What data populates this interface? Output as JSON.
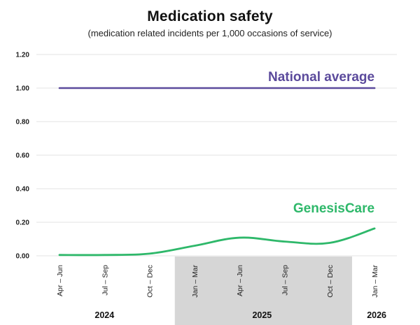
{
  "chart_data": {
    "type": "line",
    "title": "Medication safety",
    "subtitle": "(medication related incidents per 1,000 occasions of service)",
    "xlabel": "",
    "ylabel": "",
    "categories": [
      "Apr – Jun",
      "Jul – Sep",
      "Oct – Dec",
      "Jan – Mar",
      "Apr – Jun",
      "Jul – Sep",
      "Oct – Dec",
      "Jan – Mar"
    ],
    "ylim": [
      0,
      1.2
    ],
    "yticks": [
      "0.00",
      "0.20",
      "0.40",
      "0.60",
      "0.80",
      "1.00",
      "1.20"
    ],
    "grid": true,
    "legend": "inline labels",
    "year_groups": [
      {
        "label": "2024",
        "categories": [
          0,
          1,
          2
        ],
        "shaded": false
      },
      {
        "label": "2025",
        "categories": [
          3,
          4,
          5,
          6
        ],
        "shaded": true
      },
      {
        "label": "2026",
        "categories": [
          7
        ],
        "shaded": false
      }
    ],
    "series": [
      {
        "name": "National average",
        "color": "#5b4a9c",
        "values": [
          1.0,
          1.0,
          1.0,
          1.0,
          1.0,
          1.0,
          1.0,
          1.0
        ]
      },
      {
        "name": "GenesisCare",
        "color": "#2eb86a",
        "values": [
          0.005,
          0.005,
          0.013,
          0.06,
          0.108,
          0.085,
          0.077,
          0.163
        ]
      }
    ],
    "colors": {
      "grid": "#e3e3e3",
      "year_band": "#d6d6d6"
    }
  }
}
